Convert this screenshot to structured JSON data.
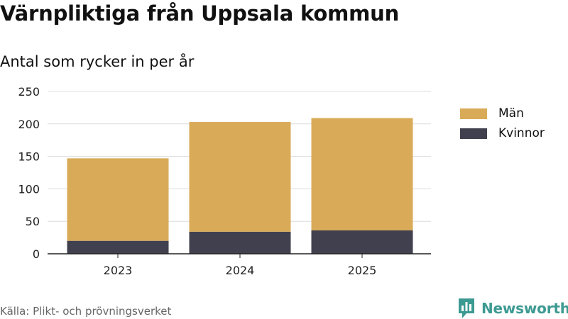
{
  "title": "Värnpliktiga från Uppsala kommun",
  "subtitle": "Antal som rycker in per år",
  "source": "Källa: Plikt- och prövningsverket",
  "brand": "Newsworthy",
  "colors": {
    "man": "#d9ab58",
    "kvinnor": "#41404e",
    "grid": "#dcdcdc",
    "axis": "#222222",
    "brand": "#3d9a92"
  },
  "chart_data": {
    "type": "bar",
    "stacked": true,
    "title": "Värnpliktiga från Uppsala kommun",
    "subtitle": "Antal som rycker in per år",
    "xlabel": "",
    "ylabel": "",
    "categories": [
      "2023",
      "2024",
      "2025"
    ],
    "series": [
      {
        "name": "Kvinnor",
        "values": [
          20,
          34,
          36
        ]
      },
      {
        "name": "Män",
        "values": [
          127,
          169,
          173
        ]
      }
    ],
    "ylim": [
      0,
      250
    ],
    "yticks": [
      0,
      50,
      100,
      150,
      200,
      250
    ],
    "grid": true,
    "legend": {
      "position": "right",
      "entries": [
        "Män",
        "Kvinnor"
      ]
    }
  }
}
